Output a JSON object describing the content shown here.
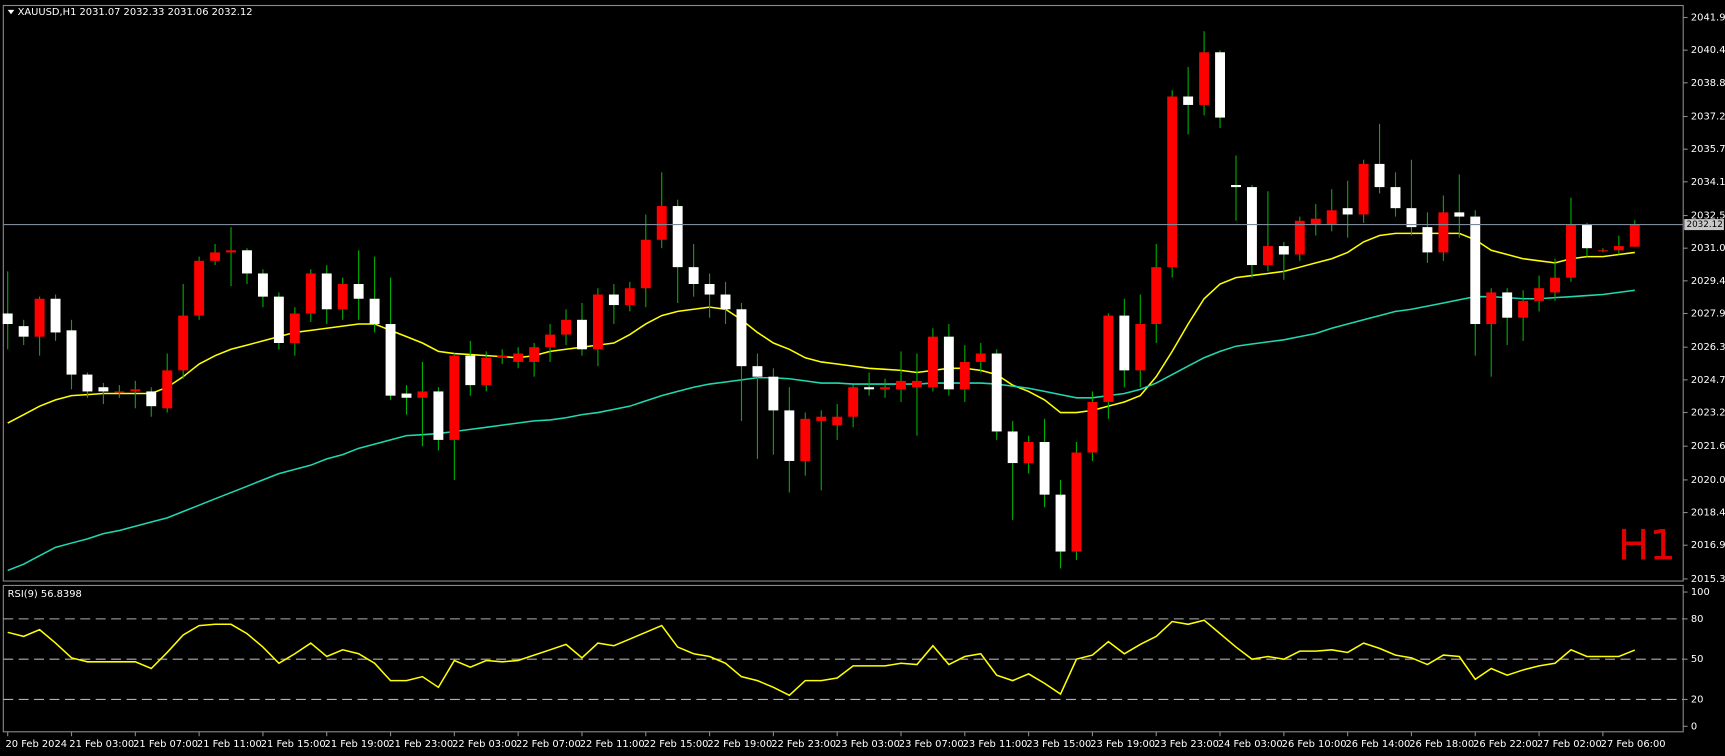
{
  "chart_data": [
    {
      "type": "candlestick",
      "title": "XAUUSD,H1  2031.07 2032.33 2031.06 2032.12",
      "timeframe_label": "H1",
      "up_color": "#ff0000",
      "down_color": "#ffffff",
      "wick_color": "#00b000",
      "categories": [
        "20 Feb 2024",
        null,
        null,
        null,
        "21 Feb 03:00",
        null,
        null,
        null,
        "21 Feb 07:00",
        null,
        null,
        null,
        "21 Feb 11:00",
        null,
        null,
        null,
        "21 Feb 15:00",
        null,
        null,
        null,
        "21 Feb 19:00",
        null,
        null,
        null,
        "21 Feb 23:00",
        null,
        null,
        null,
        "22 Feb 03:00",
        null,
        null,
        null,
        "22 Feb 07:00",
        null,
        null,
        null,
        "22 Feb 11:00",
        null,
        null,
        null,
        "22 Feb 15:00",
        null,
        null,
        null,
        "22 Feb 19:00",
        null,
        null,
        null,
        "22 Feb 23:00",
        null,
        null,
        null,
        "23 Feb 03:00",
        null,
        null,
        null,
        "23 Feb 07:00",
        null,
        null,
        null,
        "23 Feb 11:00",
        null,
        null,
        null,
        "23 Feb 15:00",
        null,
        null,
        null,
        "23 Feb 19:00",
        null,
        null,
        null,
        "23 Feb 23:00",
        null,
        null,
        null,
        "24 Feb 03:00",
        null,
        null,
        null,
        "26 Feb 10:00",
        null,
        null,
        null,
        "26 Feb 14:00",
        null,
        null,
        null,
        "26 Feb 18:00",
        null,
        null,
        null,
        "26 Feb 22:00",
        null,
        null,
        null,
        "27 Feb 02:00",
        null,
        null,
        null,
        "27 Feb 06:00",
        null,
        null
      ],
      "open": [
        2027.9,
        2027.3,
        2026.8,
        2028.6,
        2027.1,
        2025.0,
        2024.4,
        2024.2,
        2024.2,
        2024.2,
        2023.4,
        2025.2,
        2027.8,
        2030.4,
        2030.8,
        2030.9,
        2029.8,
        2028.7,
        2026.5,
        2027.9,
        2029.8,
        2028.1,
        2029.3,
        2028.6,
        2027.4,
        2024.1,
        2023.9,
        2024.2,
        2021.9,
        2025.9,
        2024.5,
        2025.8,
        2025.6,
        2025.6,
        2026.3,
        2026.9,
        2027.6,
        2026.2,
        2028.8,
        2028.3,
        2029.1,
        2031.4,
        2033.0,
        2030.1,
        2029.3,
        2028.8,
        2028.1,
        2025.4,
        2024.9,
        2023.3,
        2020.9,
        2022.8,
        2022.6,
        2023.0,
        2024.4,
        2024.3,
        2024.3,
        2024.4,
        2024.4,
        2026.8,
        2024.3,
        2025.6,
        2026.0,
        2022.3,
        2020.8,
        2021.8,
        2019.3,
        2016.6,
        2021.3,
        2023.7,
        2027.8,
        2025.2,
        2027.4,
        2030.1,
        2038.2,
        2037.8,
        2040.3,
        2034.0,
        2033.9,
        2030.2,
        2031.1,
        2030.7,
        2032.1,
        2032.1,
        2032.9,
        2032.6,
        2035.0,
        2033.9,
        2032.9,
        2032.0,
        2030.8,
        2032.7,
        2032.5,
        2027.4,
        2028.9,
        2027.7,
        2028.5,
        2028.9,
        2029.6,
        2032.1,
        2030.9,
        2030.9,
        2031.07
      ],
      "high": [
        2029.9,
        2027.6,
        2028.7,
        2028.8,
        2027.6,
        2025.1,
        2024.6,
        2024.5,
        2024.7,
        2024.4,
        2026.0,
        2029.3,
        2030.6,
        2031.2,
        2032.0,
        2031.0,
        2030.0,
        2028.9,
        2028.2,
        2030.0,
        2030.2,
        2029.6,
        2030.9,
        2030.6,
        2029.6,
        2024.5,
        2025.6,
        2024.4,
        2026.0,
        2026.6,
        2026.1,
        2026.2,
        2026.3,
        2026.5,
        2027.4,
        2028.1,
        2028.4,
        2029.1,
        2029.3,
        2029.4,
        2032.6,
        2034.6,
        2033.3,
        2031.2,
        2029.8,
        2029.4,
        2028.4,
        2026.0,
        2025.3,
        2024.4,
        2023.2,
        2023.3,
        2023.6,
        2024.5,
        2025.1,
        2024.8,
        2026.1,
        2026.0,
        2027.2,
        2027.4,
        2026.4,
        2026.5,
        2026.2,
        2022.8,
        2022.1,
        2022.9,
        2020.0,
        2021.8,
        2024.2,
        2027.9,
        2028.6,
        2028.8,
        2031.2,
        2038.5,
        2039.6,
        2041.3,
        2040.4,
        2035.4,
        2034.0,
        2033.7,
        2031.3,
        2032.5,
        2033.1,
        2033.8,
        2034.2,
        2035.2,
        2036.9,
        2034.6,
        2035.2,
        2032.7,
        2033.5,
        2034.5,
        2032.8,
        2029.1,
        2029.1,
        2029.0,
        2029.7,
        2030.5,
        2033.4,
        2032.2,
        2031.0,
        2031.6,
        2032.33
      ],
      "low": [
        2026.2,
        2026.4,
        2025.9,
        2026.6,
        2024.3,
        2023.9,
        2023.6,
        2023.9,
        2023.4,
        2023.0,
        2023.2,
        2024.8,
        2027.6,
        2030.2,
        2029.2,
        2029.3,
        2028.2,
        2026.2,
        2025.9,
        2027.5,
        2027.4,
        2027.6,
        2027.6,
        2027.0,
        2023.8,
        2023.1,
        2021.6,
        2021.4,
        2020.0,
        2024.0,
        2024.2,
        2025.5,
        2025.3,
        2024.9,
        2025.6,
        2026.4,
        2025.9,
        2025.4,
        2027.4,
        2028.0,
        2028.2,
        2031.0,
        2028.4,
        2028.7,
        2027.7,
        2027.4,
        2022.8,
        2021.0,
        2021.2,
        2019.4,
        2020.2,
        2019.5,
        2021.9,
        2022.5,
        2024.0,
        2023.9,
        2023.7,
        2022.1,
        2024.2,
        2024.0,
        2023.7,
        2025.1,
        2021.9,
        2018.1,
        2020.3,
        2018.7,
        2015.8,
        2016.2,
        2020.9,
        2022.9,
        2024.4,
        2024.4,
        2026.5,
        2029.6,
        2036.4,
        2037.3,
        2036.7,
        2032.3,
        2029.6,
        2029.9,
        2029.5,
        2030.4,
        2031.6,
        2031.8,
        2031.5,
        2032.2,
        2033.6,
        2032.5,
        2031.6,
        2030.3,
        2030.4,
        2031.5,
        2025.9,
        2024.9,
        2026.4,
        2026.6,
        2028.0,
        2028.5,
        2029.4,
        2030.6,
        2030.8,
        2030.7,
        2031.06
      ],
      "close": [
        2027.4,
        2026.8,
        2028.6,
        2027.0,
        2025.0,
        2024.2,
        2024.2,
        2024.2,
        2024.3,
        2023.5,
        2025.2,
        2027.8,
        2030.4,
        2030.8,
        2030.9,
        2029.8,
        2028.7,
        2026.5,
        2027.9,
        2029.8,
        2028.1,
        2029.3,
        2028.6,
        2027.4,
        2024.0,
        2023.9,
        2024.2,
        2021.9,
        2025.9,
        2024.5,
        2025.8,
        2025.9,
        2026.0,
        2026.3,
        2026.9,
        2027.6,
        2026.2,
        2028.8,
        2028.3,
        2029.1,
        2031.4,
        2033.0,
        2030.1,
        2029.3,
        2028.8,
        2028.1,
        2025.4,
        2024.9,
        2023.3,
        2020.9,
        2022.9,
        2023.0,
        2023.0,
        2024.4,
        2024.3,
        2024.4,
        2024.7,
        2024.7,
        2026.8,
        2024.3,
        2025.6,
        2026.0,
        2022.3,
        2020.8,
        2021.8,
        2019.3,
        2016.6,
        2021.3,
        2023.7,
        2027.8,
        2025.2,
        2027.4,
        2030.1,
        2038.2,
        2037.8,
        2040.3,
        2037.2,
        2033.9,
        2030.2,
        2031.1,
        2030.7,
        2032.3,
        2032.4,
        2032.8,
        2032.6,
        2035.0,
        2033.9,
        2032.9,
        2032.0,
        2030.8,
        2032.7,
        2032.5,
        2027.4,
        2028.9,
        2027.7,
        2028.5,
        2029.1,
        2029.6,
        2032.1,
        2031.0,
        2030.9,
        2031.1,
        2032.12
      ],
      "moving_averages": [
        {
          "color": "#ffff00",
          "values": [
            2022.7,
            2023.1,
            2023.5,
            2023.8,
            2024.0,
            2024.05,
            2024.1,
            2024.1,
            2024.1,
            2024.1,
            2024.4,
            2024.9,
            2025.5,
            2025.9,
            2026.2,
            2026.4,
            2026.6,
            2026.8,
            2027.0,
            2027.1,
            2027.2,
            2027.3,
            2027.4,
            2027.4,
            2027.1,
            2026.8,
            2026.5,
            2026.1,
            2026.0,
            2025.95,
            2025.9,
            2025.85,
            2025.8,
            2025.9,
            2026.1,
            2026.2,
            2026.3,
            2026.4,
            2026.5,
            2026.9,
            2027.4,
            2027.8,
            2028.0,
            2028.1,
            2028.2,
            2028.1,
            2027.6,
            2027.0,
            2026.5,
            2026.2,
            2025.8,
            2025.6,
            2025.5,
            2025.4,
            2025.3,
            2025.25,
            2025.2,
            2025.1,
            2025.2,
            2025.3,
            2025.3,
            2025.2,
            2025.0,
            2024.5,
            2024.2,
            2023.8,
            2023.2,
            2023.2,
            2023.3,
            2023.5,
            2023.7,
            2024.0,
            2024.9,
            2026.1,
            2027.4,
            2028.6,
            2029.3,
            2029.6,
            2029.7,
            2029.8,
            2029.9,
            2030.1,
            2030.3,
            2030.5,
            2030.8,
            2031.3,
            2031.6,
            2031.7,
            2031.7,
            2031.7,
            2031.7,
            2031.7,
            2031.4,
            2030.9,
            2030.7,
            2030.5,
            2030.4,
            2030.3,
            2030.5,
            2030.6,
            2030.6,
            2030.7,
            2030.8
          ]
        },
        {
          "color": "#20d8b0",
          "values": [
            2015.7,
            2016.0,
            2016.4,
            2016.8,
            2017.0,
            2017.2,
            2017.45,
            2017.6,
            2017.8,
            2018.0,
            2018.2,
            2018.5,
            2018.8,
            2019.1,
            2019.4,
            2019.7,
            2020.0,
            2020.3,
            2020.5,
            2020.7,
            2021.0,
            2021.2,
            2021.5,
            2021.7,
            2021.9,
            2022.1,
            2022.15,
            2022.2,
            2022.3,
            2022.4,
            2022.5,
            2022.6,
            2022.7,
            2022.8,
            2022.85,
            2022.95,
            2023.1,
            2023.2,
            2023.35,
            2023.5,
            2023.75,
            2024.0,
            2024.2,
            2024.4,
            2024.55,
            2024.65,
            2024.75,
            2024.85,
            2024.85,
            2024.8,
            2024.7,
            2024.6,
            2024.6,
            2024.55,
            2024.55,
            2024.55,
            2024.55,
            2024.55,
            2024.6,
            2024.6,
            2024.6,
            2024.6,
            2024.55,
            2024.45,
            2024.35,
            2024.2,
            2024.05,
            2023.9,
            2023.9,
            2024.0,
            2024.1,
            2024.3,
            2024.6,
            2025.0,
            2025.4,
            2025.8,
            2026.1,
            2026.35,
            2026.45,
            2026.55,
            2026.65,
            2026.8,
            2026.95,
            2027.2,
            2027.4,
            2027.6,
            2027.8,
            2028.0,
            2028.1,
            2028.25,
            2028.4,
            2028.55,
            2028.7,
            2028.7,
            2028.65,
            2028.6,
            2028.6,
            2028.65,
            2028.7,
            2028.75,
            2028.8,
            2028.9,
            2029.0
          ]
        }
      ],
      "ylim": [
        2015.2,
        2042.52
      ],
      "yticks": [
        2041.95,
        {
          "value": 2040.4,
          "label": "2040.40"
        },
        2038.85,
        2037.25,
        {
          "value": 2035.7,
          "label": "2035.70"
        },
        2034.15,
        2032.55,
        {
          "value": 2031.0,
          "label": "2031.00"
        },
        2029.45,
        {
          "value": 2027.9,
          "label": "2027.90"
        },
        {
          "value": 2026.3,
          "label": "2026.30"
        },
        2024.75,
        {
          "value": 2023.2,
          "label": "2023.20"
        },
        {
          "value": 2021.6,
          "label": "2021.60"
        },
        {
          "value": 2020.0,
          "label": "2020.00"
        },
        2018.45,
        {
          "value": 2016.9,
          "label": "2016.90"
        },
        {
          "value": 2015.3,
          "label": "2015.30"
        }
      ]
    },
    {
      "type": "line",
      "title": "RSI(9) 56.8398",
      "color": "#ffff00",
      "values": [
        70,
        67,
        72,
        62,
        51,
        48,
        48,
        48,
        48,
        43,
        55,
        68,
        75,
        76,
        76,
        69,
        59,
        47,
        54,
        62,
        52,
        57,
        54,
        47,
        34,
        34,
        37,
        29,
        49,
        44,
        49,
        48,
        49,
        53,
        57,
        61,
        51,
        62,
        60,
        65,
        70,
        75,
        59,
        54,
        52,
        47,
        37,
        34,
        29,
        23,
        34,
        34,
        36,
        45,
        45,
        45,
        47,
        46,
        60,
        46,
        52,
        54,
        38,
        34,
        39,
        32,
        24,
        50,
        53,
        63,
        54,
        61,
        67,
        78,
        76,
        79,
        69,
        59,
        50,
        52,
        50,
        56,
        56,
        57,
        55,
        62,
        58,
        53,
        51,
        46,
        53,
        52,
        35,
        43,
        38,
        42,
        45,
        47,
        57,
        52,
        52,
        52,
        56.8398
      ],
      "ylim": [
        -4.1,
        104.1
      ],
      "yticks": [
        0,
        20,
        50,
        80,
        100
      ],
      "grid_levels": [
        20,
        50,
        80
      ]
    }
  ]
}
